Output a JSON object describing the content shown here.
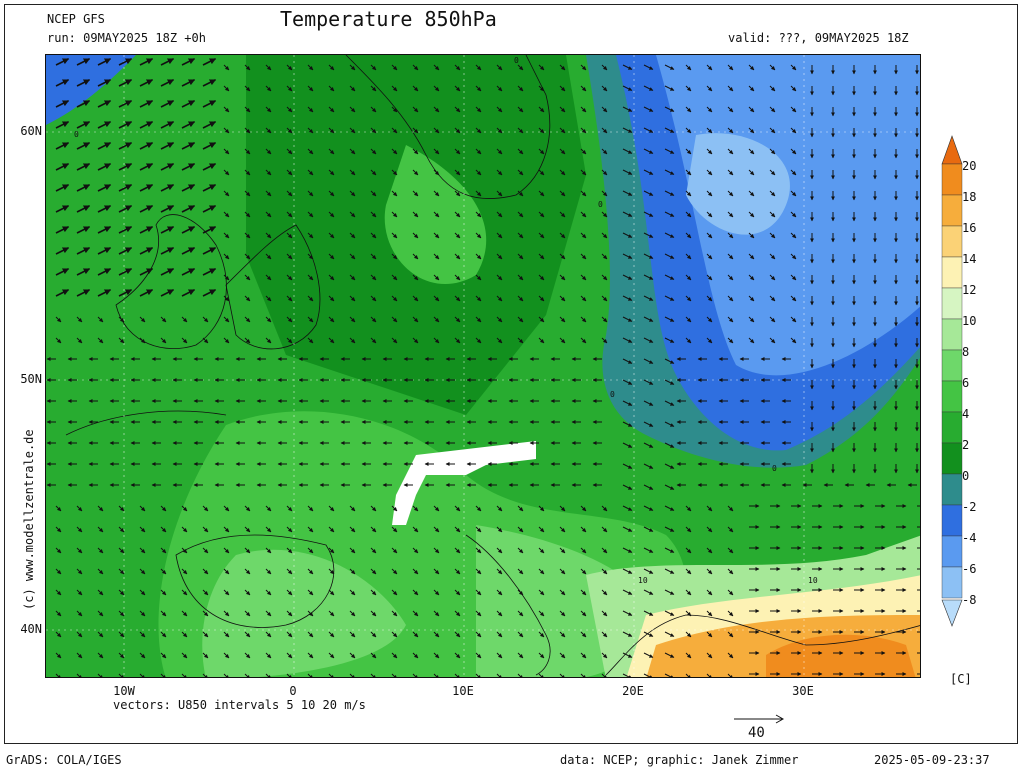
{
  "header": {
    "model": "NCEP GFS",
    "run": "run: 09MAY2025 18Z +0h",
    "title": "Temperature 850hPa",
    "valid": "valid: ???, 09MAY2025 18Z"
  },
  "map": {
    "lat_labels": [
      "60N",
      "50N",
      "40N"
    ],
    "lon_labels": [
      "10W",
      "0",
      "10E",
      "20E",
      "30E"
    ],
    "contour_labels": [
      "0",
      "0",
      "0",
      "0",
      "0",
      "10",
      "10"
    ],
    "vectors_note": "vectors: U850 intervals 5 10 20 m/s",
    "reference_vector": "40",
    "watermark": "(c) www.modellzentrale.de"
  },
  "colorbar": {
    "unit": "[C]",
    "labels": [
      "20",
      "18",
      "16",
      "14",
      "12",
      "10",
      "8",
      "6",
      "4",
      "2",
      "0",
      "-2",
      "-4",
      "-6",
      "-8"
    ],
    "colors": {
      "top_arrow": "#e86a10",
      "c18_20": "#f08c1e",
      "c16_18": "#f6ad3c",
      "c14_16": "#fbd276",
      "c12_14": "#fdf2b4",
      "c10_12": "#d6f5c2",
      "c8_10": "#a6e898",
      "c6_8": "#6ed86a",
      "c4_6": "#44c444",
      "c2_4": "#28ac30",
      "c0_2": "#12901e",
      "cm2_0": "#2e8c8c",
      "cm4_m2": "#2f6fe0",
      "cm6_m4": "#5a9af0",
      "cm8_m6": "#8cc0f4",
      "bottom_arrow": "#b8dcfa"
    }
  },
  "footer": {
    "grads": "GrADS: COLA/IGES",
    "credits": "data: NCEP; graphic: Janek Zimmer",
    "timestamp": "2025-05-09-23:37"
  }
}
